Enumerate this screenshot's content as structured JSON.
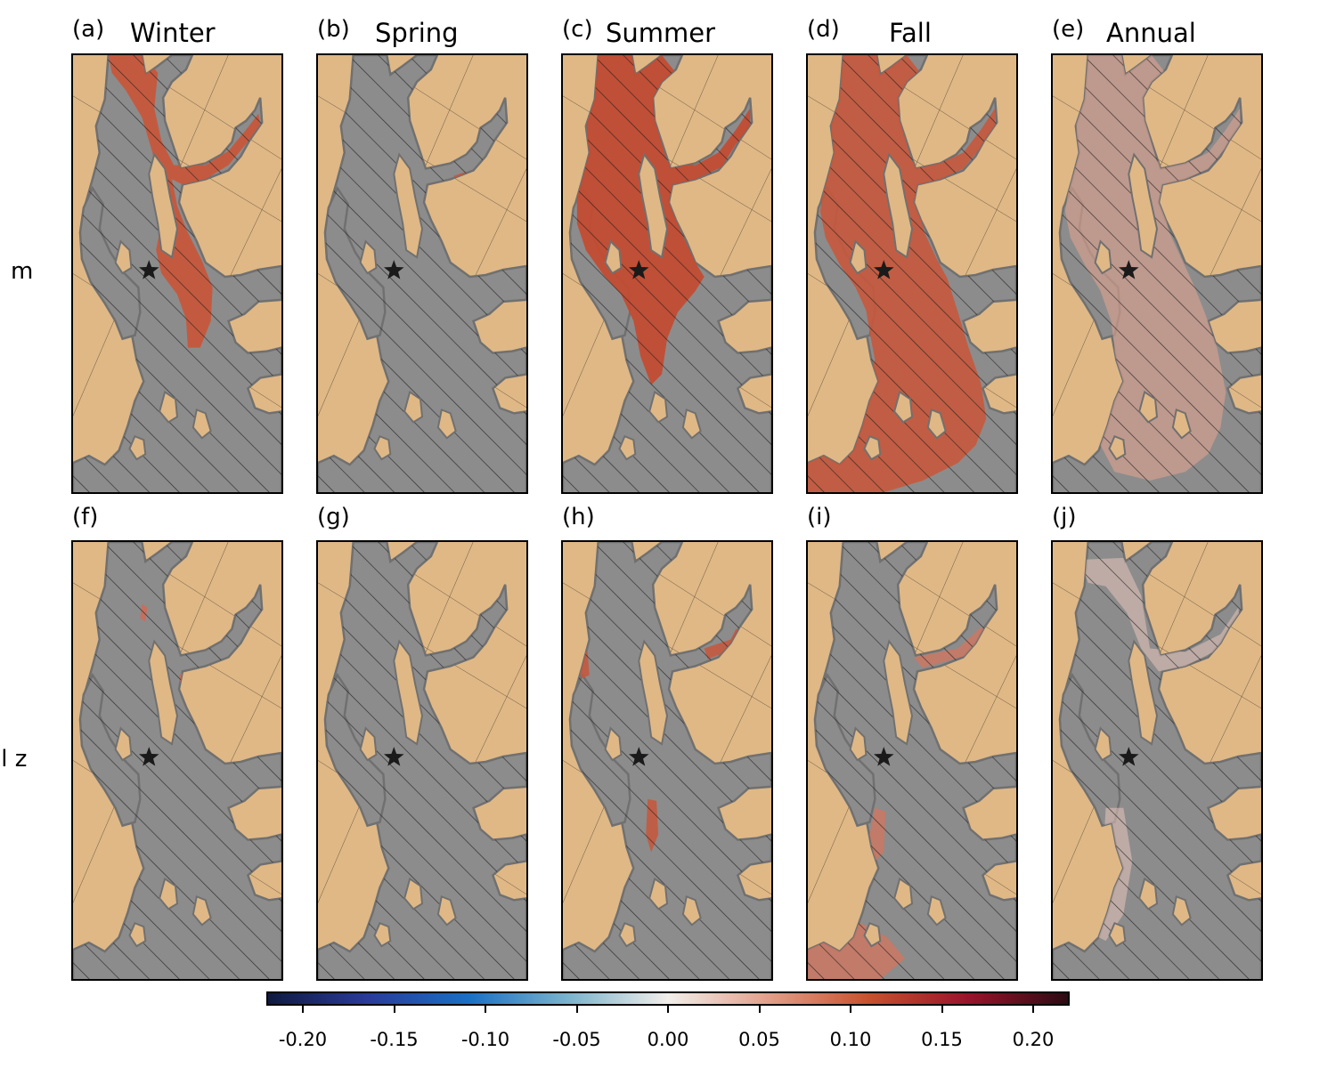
{
  "rows": [
    {
      "label": "m"
    },
    {
      "label": "ll z"
    }
  ],
  "panels": [
    {
      "letter": "(a)",
      "title": "Winter"
    },
    {
      "letter": "(b)",
      "title": "Spring"
    },
    {
      "letter": "(c)",
      "title": "Summer"
    },
    {
      "letter": "(d)",
      "title": "Fall"
    },
    {
      "letter": "(e)",
      "title": "Annual"
    },
    {
      "letter": "(f)",
      "title": ""
    },
    {
      "letter": "(g)",
      "title": ""
    },
    {
      "letter": "(h)",
      "title": ""
    },
    {
      "letter": "(i)",
      "title": ""
    },
    {
      "letter": "(j)",
      "title": ""
    }
  ],
  "colorbar": {
    "ticks": [
      "-0.20",
      "-0.15",
      "-0.10",
      "-0.05",
      "0.00",
      "0.05",
      "0.10",
      "0.15",
      "0.20"
    ],
    "range": [
      -0.22,
      0.22
    ],
    "colormap": [
      "#0f1a3f",
      "#2a3b9a",
      "#1a6fc4",
      "#7bb3cc",
      "#f2eeea",
      "#e2a08b",
      "#c8512f",
      "#99142b",
      "#2b0b12"
    ]
  },
  "colors": {
    "land": "#dfb886",
    "insignificant": "#8c8c8c",
    "coastline": "#707070",
    "positive": "#c8563a"
  },
  "marker": "black star (station)"
}
